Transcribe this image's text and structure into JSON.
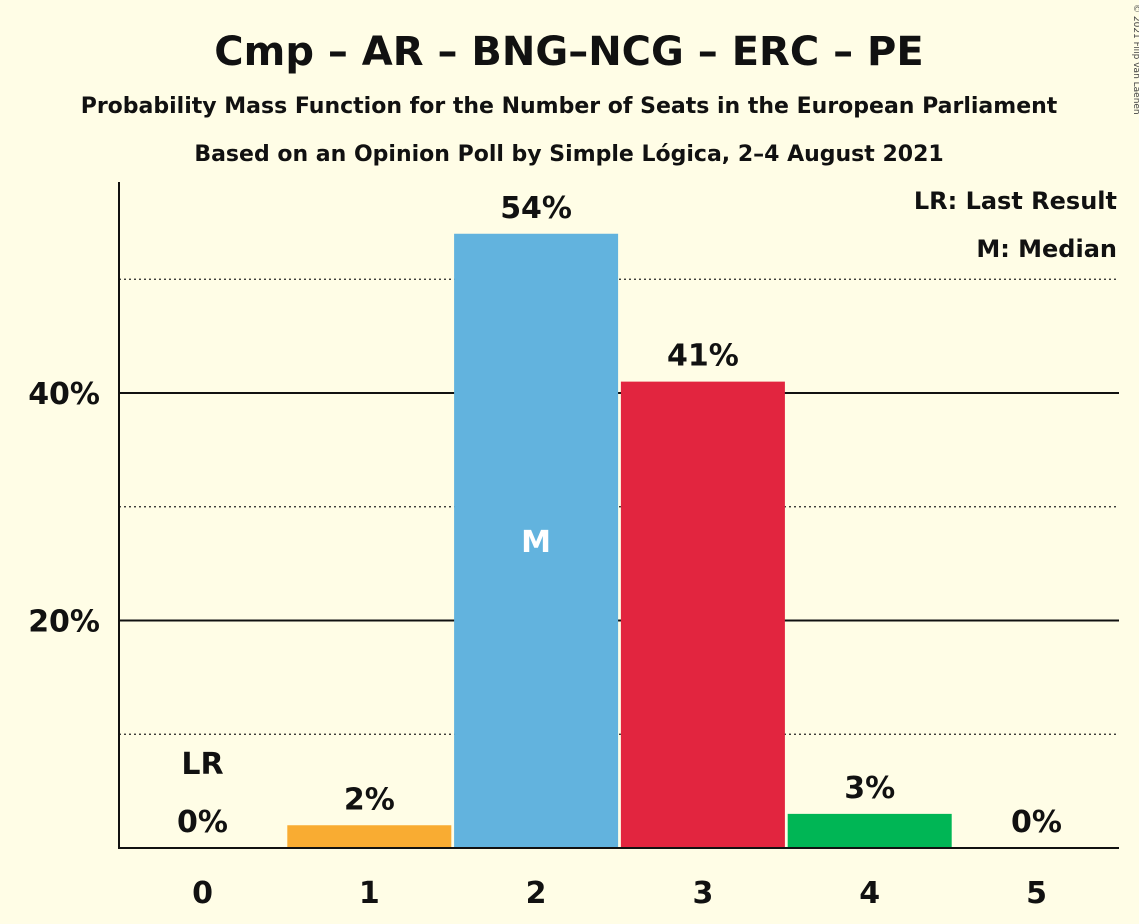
{
  "chart_data": {
    "type": "bar",
    "title": "Cmp – AR – BNG–NCG – ERC – PE",
    "subtitle": "Probability Mass Function for the Number of Seats in the European Parliament",
    "subtitle2": "Based on an Opinion Poll by Simple Lógica, 2–4 August 2021",
    "copyright": "© 2021 Filip van Laenen",
    "categories": [
      "0",
      "1",
      "2",
      "3",
      "4",
      "5"
    ],
    "values": [
      0,
      2,
      54,
      41,
      3,
      0
    ],
    "value_labels": [
      "0%",
      "2%",
      "54%",
      "41%",
      "3%",
      "0%"
    ],
    "colors": [
      "#f9ac32",
      "#f9ac32",
      "#62b3de",
      "#e2253f",
      "#00b655",
      "#00b655"
    ],
    "yticks": [
      {
        "value": 20,
        "label": "20%"
      },
      {
        "value": 40,
        "label": "40%"
      }
    ],
    "minor_gridlines": [
      10,
      30,
      50
    ],
    "ylim": [
      0,
      58
    ],
    "last_result": {
      "index": 0,
      "label": "LR"
    },
    "median": {
      "index": 2,
      "label": "M"
    },
    "legend": [
      "LR: Last Result",
      "M: Median"
    ],
    "legend_position": "top-right"
  }
}
